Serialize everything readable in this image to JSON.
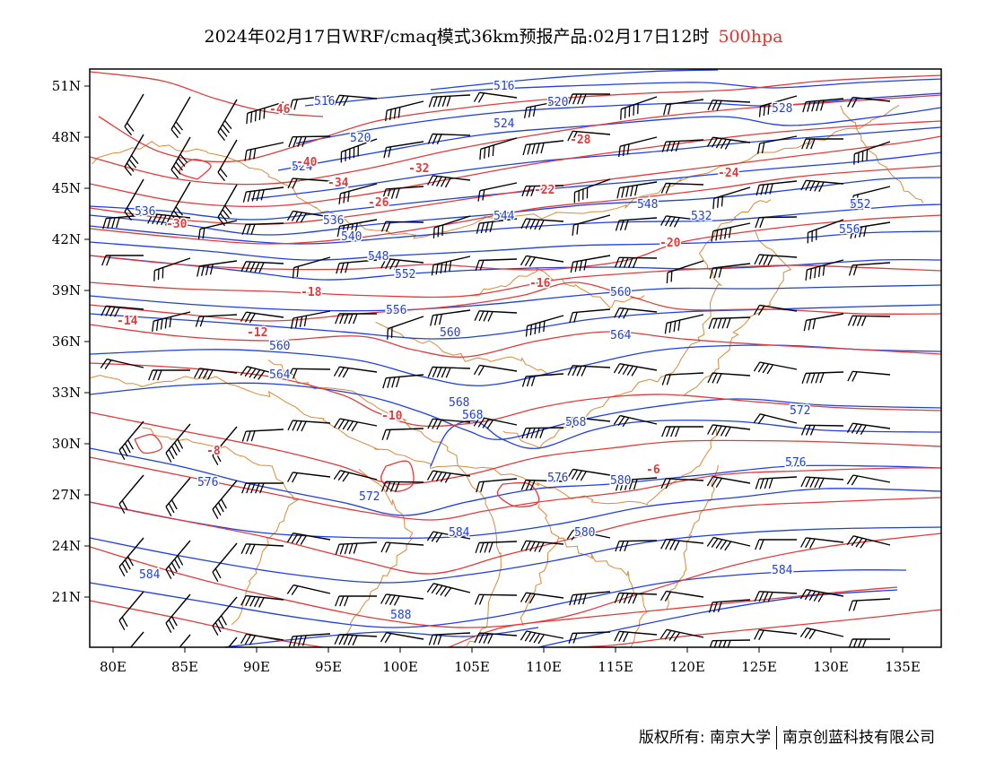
{
  "title": {
    "main": "2024年02月17日WRF/cmaq模式36km预报产品:02月17日12时",
    "level": "500hpa"
  },
  "axes": {
    "lon_ticks": [
      "80E",
      "85E",
      "90E",
      "95E",
      "100E",
      "105E",
      "110E",
      "115E",
      "120E",
      "125E",
      "130E",
      "135E"
    ],
    "lat_ticks": [
      "51N",
      "48N",
      "45N",
      "42N",
      "39N",
      "36N",
      "33N",
      "30N",
      "27N",
      "24N",
      "21N"
    ]
  },
  "colors": {
    "height_contour": "#1f3fe0",
    "temp_contour": "#e03c3c",
    "borders": "#d98a3a",
    "wind_barb": "#000000"
  },
  "height_labels": [
    "516",
    "516",
    "520",
    "524",
    "520",
    "524",
    "528",
    "532",
    "536",
    "536",
    "540",
    "544",
    "548",
    "548",
    "552",
    "552",
    "556",
    "556",
    "560",
    "560",
    "560",
    "564",
    "564",
    "568",
    "568",
    "568",
    "572",
    "572",
    "576",
    "576",
    "576",
    "580",
    "580",
    "584",
    "584",
    "584",
    "588"
  ],
  "temp_labels": [
    "-46",
    "-40",
    "-34",
    "-32",
    "-30",
    "-28",
    "-26",
    "-24",
    "-22",
    "-20",
    "-18",
    "-16",
    "-14",
    "-12",
    "-10",
    "-8",
    "-6"
  ],
  "footer": {
    "left": "版权所有: 南京大学",
    "right": "南京创蓝科技有限公司"
  }
}
